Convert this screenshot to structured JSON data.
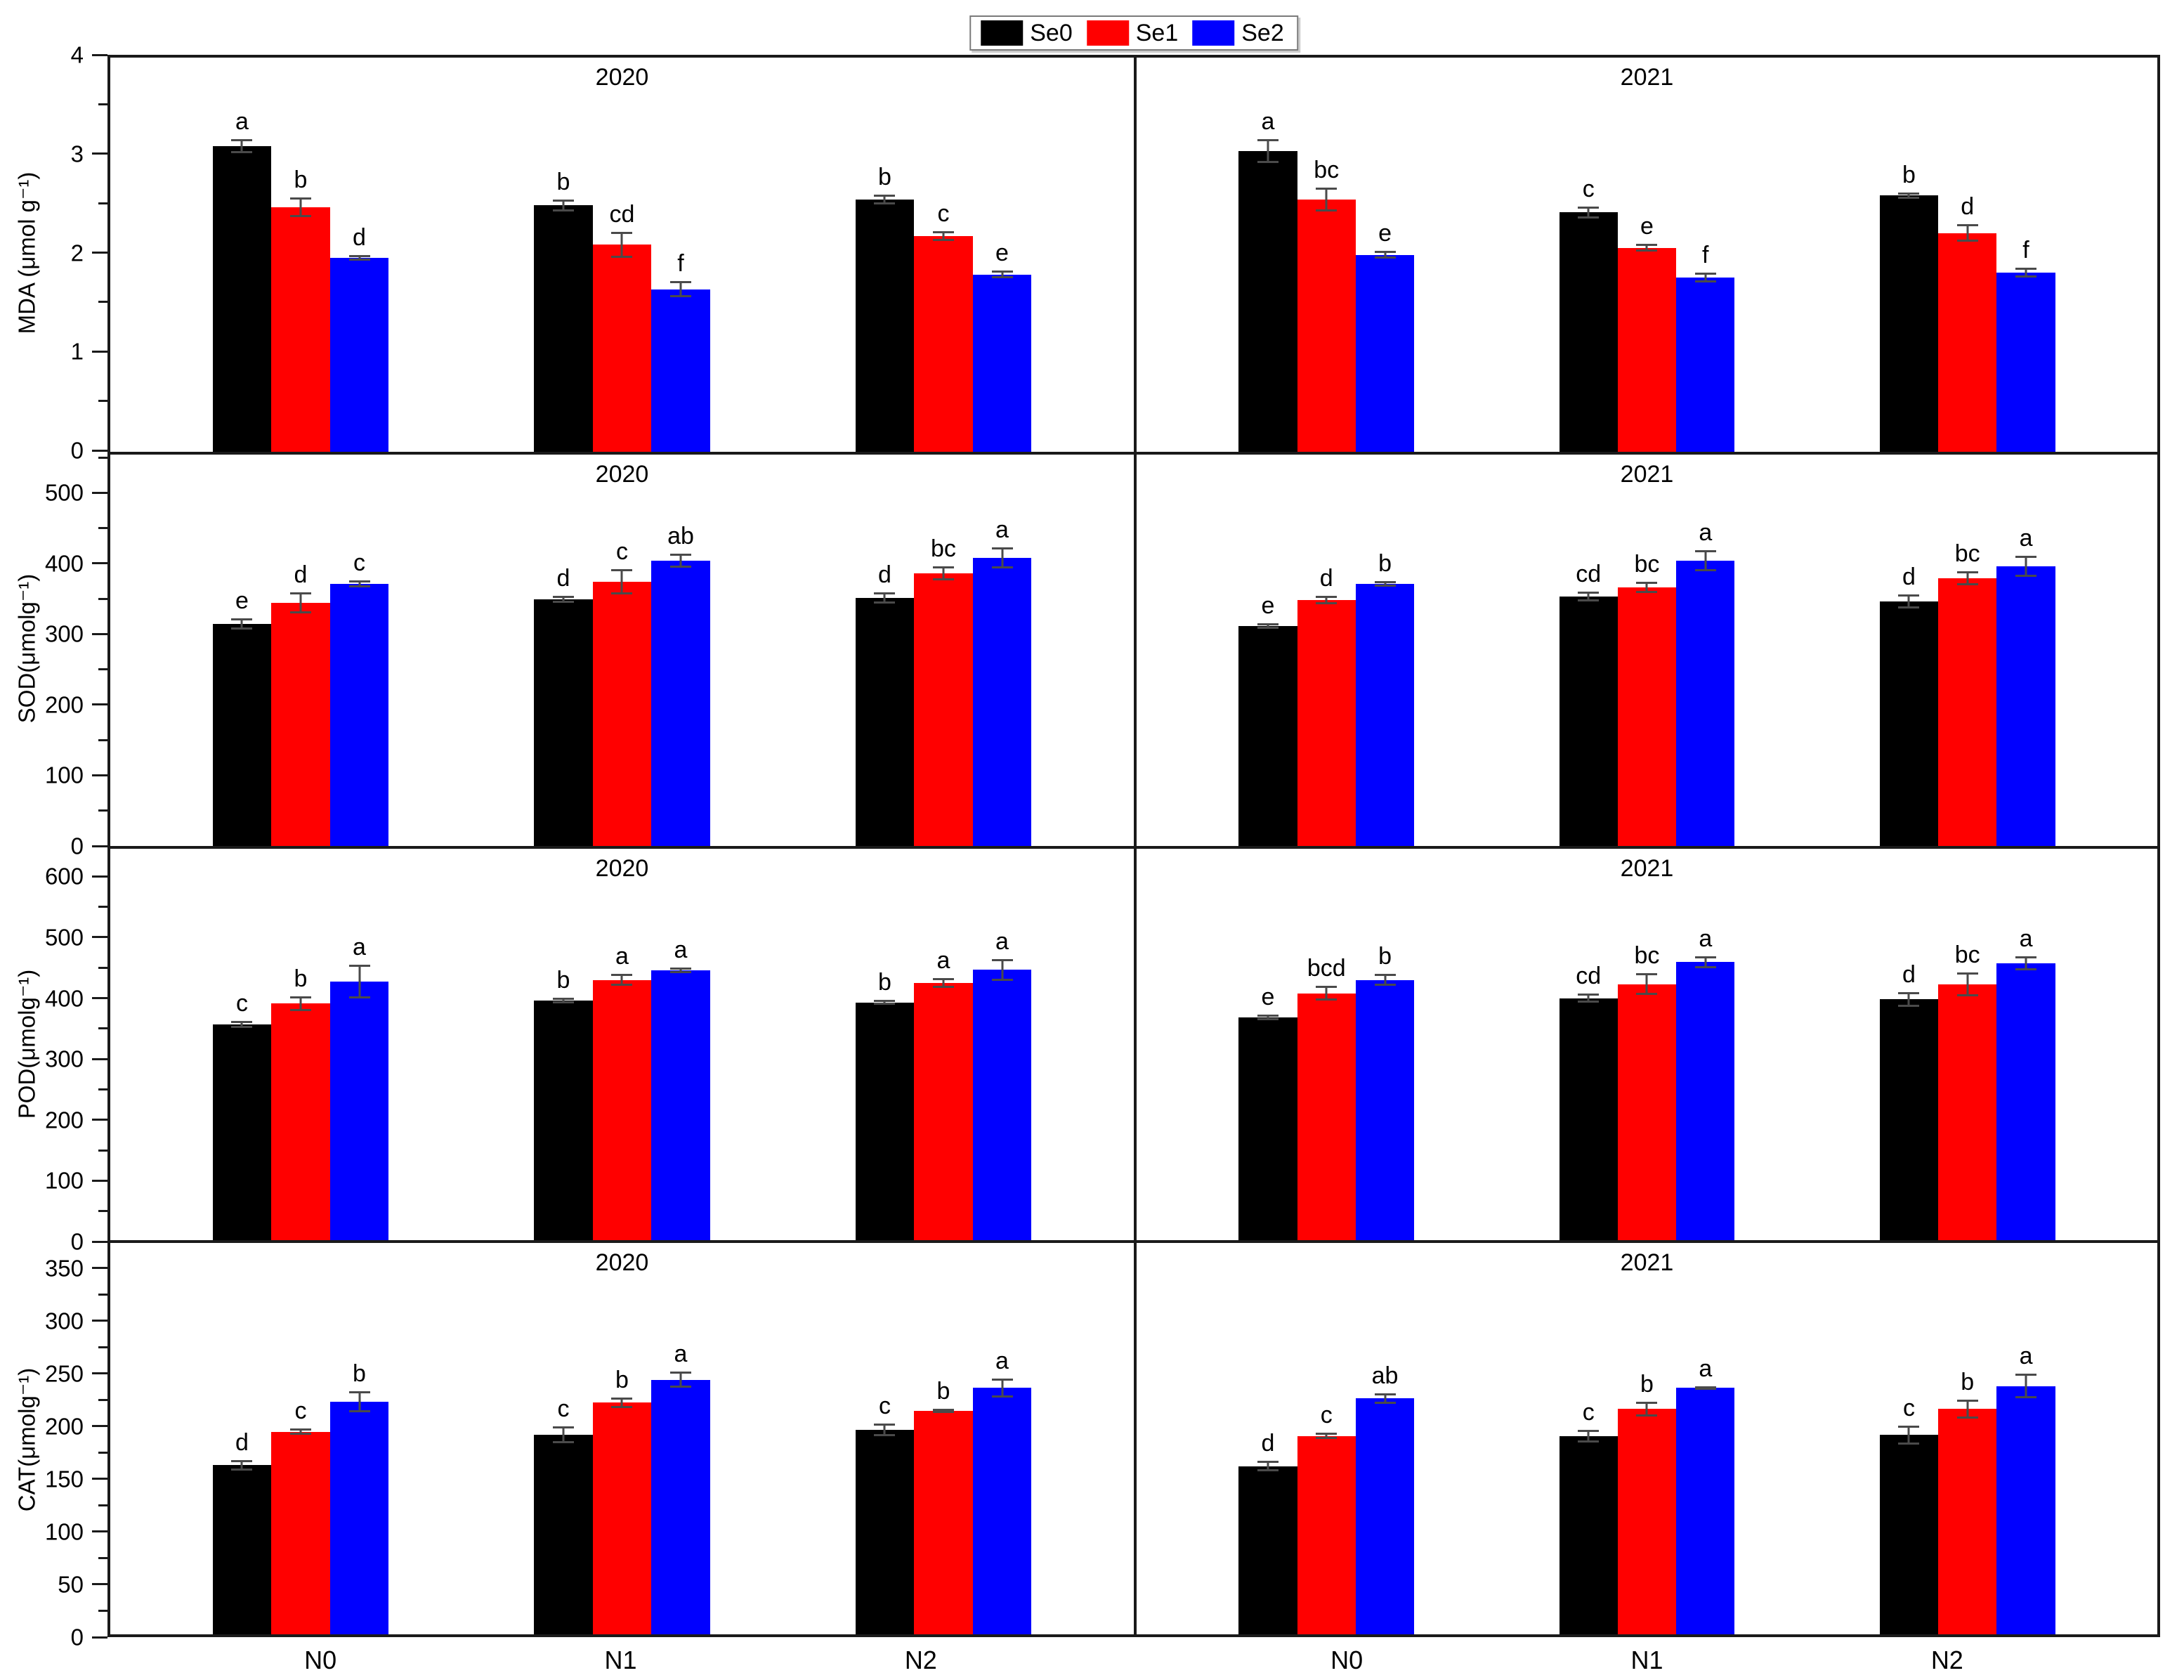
{
  "legend": {
    "items": [
      {
        "label": "Se0",
        "color": "#000000"
      },
      {
        "label": "Se1",
        "color": "#ff0000"
      },
      {
        "label": "Se2",
        "color": "#0000ff"
      }
    ],
    "position": "top-center"
  },
  "x_categories": [
    "N0",
    "N1",
    "N2"
  ],
  "chart_data": {
    "type": "bar",
    "grid": false,
    "layout": "4 rows (MDA, SOD, POD, CAT) x 2 columns (2020, 2021), grouped bars with error bars and significance letters",
    "series_names": [
      "Se0",
      "Se1",
      "Se2"
    ],
    "rows": [
      {
        "measure": "MDA",
        "ylabel": "MDA (μmol g⁻¹)",
        "ylim": [
          0,
          4
        ],
        "yticks": [
          0,
          1,
          2,
          3,
          4
        ],
        "tick_step": 1,
        "minor_step": 0.5,
        "render_max": 4,
        "panels": [
          {
            "year": "2020",
            "groups": [
              {
                "category": "N0",
                "bars": [
                  {
                    "series": "Se0",
                    "value": 3.1,
                    "err": 0.07,
                    "letter": "a"
                  },
                  {
                    "series": "Se1",
                    "value": 2.48,
                    "err": 0.1,
                    "letter": "b"
                  },
                  {
                    "series": "Se2",
                    "value": 1.97,
                    "err": 0.03,
                    "letter": "d"
                  }
                ]
              },
              {
                "category": "N1",
                "bars": [
                  {
                    "series": "Se0",
                    "value": 2.5,
                    "err": 0.06,
                    "letter": "b"
                  },
                  {
                    "series": "Se1",
                    "value": 2.1,
                    "err": 0.13,
                    "letter": "cd"
                  },
                  {
                    "series": "Se2",
                    "value": 1.65,
                    "err": 0.08,
                    "letter": "f"
                  }
                ]
              },
              {
                "category": "N2",
                "bars": [
                  {
                    "series": "Se0",
                    "value": 2.56,
                    "err": 0.05,
                    "letter": "b"
                  },
                  {
                    "series": "Se1",
                    "value": 2.19,
                    "err": 0.05,
                    "letter": "c"
                  },
                  {
                    "series": "Se2",
                    "value": 1.8,
                    "err": 0.04,
                    "letter": "e"
                  }
                ]
              }
            ]
          },
          {
            "year": "2021",
            "groups": [
              {
                "category": "N0",
                "bars": [
                  {
                    "series": "Se0",
                    "value": 3.05,
                    "err": 0.12,
                    "letter": "a"
                  },
                  {
                    "series": "Se1",
                    "value": 2.56,
                    "err": 0.12,
                    "letter": "bc"
                  },
                  {
                    "series": "Se2",
                    "value": 2.0,
                    "err": 0.04,
                    "letter": "e"
                  }
                ]
              },
              {
                "category": "N1",
                "bars": [
                  {
                    "series": "Se0",
                    "value": 2.43,
                    "err": 0.06,
                    "letter": "c"
                  },
                  {
                    "series": "Se1",
                    "value": 2.07,
                    "err": 0.04,
                    "letter": "e"
                  },
                  {
                    "series": "Se2",
                    "value": 1.77,
                    "err": 0.05,
                    "letter": "f"
                  }
                ]
              },
              {
                "category": "N2",
                "bars": [
                  {
                    "series": "Se0",
                    "value": 2.6,
                    "err": 0.03,
                    "letter": "b"
                  },
                  {
                    "series": "Se1",
                    "value": 2.22,
                    "err": 0.09,
                    "letter": "d"
                  },
                  {
                    "series": "Se2",
                    "value": 1.82,
                    "err": 0.05,
                    "letter": "f"
                  }
                ]
              }
            ]
          }
        ]
      },
      {
        "measure": "SOD",
        "ylabel": "SOD(μmolg⁻¹)",
        "ylim": [
          0,
          500
        ],
        "yticks": [
          0,
          100,
          200,
          300,
          400,
          500
        ],
        "tick_step": 100,
        "minor_step": 50,
        "render_max": 560,
        "panels": [
          {
            "year": "2020",
            "groups": [
              {
                "category": "N0",
                "bars": [
                  {
                    "series": "Se0",
                    "value": 318,
                    "err": 8,
                    "letter": "e"
                  },
                  {
                    "series": "Se1",
                    "value": 348,
                    "err": 15,
                    "letter": "d"
                  },
                  {
                    "series": "Se2",
                    "value": 375,
                    "err": 5,
                    "letter": "c"
                  }
                ]
              },
              {
                "category": "N1",
                "bars": [
                  {
                    "series": "Se0",
                    "value": 353,
                    "err": 5,
                    "letter": "d"
                  },
                  {
                    "series": "Se1",
                    "value": 378,
                    "err": 18,
                    "letter": "c"
                  },
                  {
                    "series": "Se2",
                    "value": 408,
                    "err": 10,
                    "letter": "ab"
                  }
                ]
              },
              {
                "category": "N2",
                "bars": [
                  {
                    "series": "Se0",
                    "value": 355,
                    "err": 8,
                    "letter": "d"
                  },
                  {
                    "series": "Se1",
                    "value": 390,
                    "err": 10,
                    "letter": "bc"
                  },
                  {
                    "series": "Se2",
                    "value": 412,
                    "err": 15,
                    "letter": "a"
                  }
                ]
              }
            ]
          },
          {
            "year": "2021",
            "groups": [
              {
                "category": "N0",
                "bars": [
                  {
                    "series": "Se0",
                    "value": 315,
                    "err": 4,
                    "letter": "e"
                  },
                  {
                    "series": "Se1",
                    "value": 352,
                    "err": 6,
                    "letter": "d"
                  },
                  {
                    "series": "Se2",
                    "value": 375,
                    "err": 4,
                    "letter": "b"
                  }
                ]
              },
              {
                "category": "N1",
                "bars": [
                  {
                    "series": "Se0",
                    "value": 357,
                    "err": 7,
                    "letter": "cd"
                  },
                  {
                    "series": "Se1",
                    "value": 370,
                    "err": 8,
                    "letter": "bc"
                  },
                  {
                    "series": "Se2",
                    "value": 408,
                    "err": 15,
                    "letter": "a"
                  }
                ]
              },
              {
                "category": "N2",
                "bars": [
                  {
                    "series": "Se0",
                    "value": 350,
                    "err": 10,
                    "letter": "d"
                  },
                  {
                    "series": "Se1",
                    "value": 383,
                    "err": 10,
                    "letter": "bc"
                  },
                  {
                    "series": "Se2",
                    "value": 400,
                    "err": 15,
                    "letter": "a"
                  }
                ]
              }
            ]
          }
        ]
      },
      {
        "measure": "POD",
        "ylabel": "POD(μmolg⁻¹)",
        "ylim": [
          0,
          600
        ],
        "yticks": [
          0,
          100,
          200,
          300,
          400,
          500,
          600
        ],
        "tick_step": 100,
        "minor_step": 50,
        "render_max": 650,
        "panels": [
          {
            "year": "2020",
            "groups": [
              {
                "category": "N0",
                "bars": [
                  {
                    "series": "Se0",
                    "value": 358,
                    "err": 6,
                    "letter": "c"
                  },
                  {
                    "series": "Se1",
                    "value": 393,
                    "err": 12,
                    "letter": "b"
                  },
                  {
                    "series": "Se2",
                    "value": 430,
                    "err": 28,
                    "letter": "a"
                  }
                ]
              },
              {
                "category": "N1",
                "bars": [
                  {
                    "series": "Se0",
                    "value": 398,
                    "err": 5,
                    "letter": "b"
                  },
                  {
                    "series": "Se1",
                    "value": 432,
                    "err": 10,
                    "letter": "a"
                  },
                  {
                    "series": "Se2",
                    "value": 448,
                    "err": 5,
                    "letter": "a"
                  }
                ]
              },
              {
                "category": "N2",
                "bars": [
                  {
                    "series": "Se0",
                    "value": 395,
                    "err": 4,
                    "letter": "b"
                  },
                  {
                    "series": "Se1",
                    "value": 427,
                    "err": 8,
                    "letter": "a"
                  },
                  {
                    "series": "Se2",
                    "value": 449,
                    "err": 18,
                    "letter": "a"
                  }
                ]
              }
            ]
          },
          {
            "year": "2021",
            "groups": [
              {
                "category": "N0",
                "bars": [
                  {
                    "series": "Se0",
                    "value": 370,
                    "err": 5,
                    "letter": "e"
                  },
                  {
                    "series": "Se1",
                    "value": 410,
                    "err": 12,
                    "letter": "bcd"
                  },
                  {
                    "series": "Se2",
                    "value": 432,
                    "err": 10,
                    "letter": "b"
                  }
                ]
              },
              {
                "category": "N1",
                "bars": [
                  {
                    "series": "Se0",
                    "value": 402,
                    "err": 8,
                    "letter": "cd"
                  },
                  {
                    "series": "Se1",
                    "value": 425,
                    "err": 18,
                    "letter": "bc"
                  },
                  {
                    "series": "Se2",
                    "value": 462,
                    "err": 10,
                    "letter": "a"
                  }
                ]
              },
              {
                "category": "N2",
                "bars": [
                  {
                    "series": "Se0",
                    "value": 400,
                    "err": 12,
                    "letter": "d"
                  },
                  {
                    "series": "Se1",
                    "value": 425,
                    "err": 20,
                    "letter": "bc"
                  },
                  {
                    "series": "Se2",
                    "value": 460,
                    "err": 12,
                    "letter": "a"
                  }
                ]
              }
            ]
          }
        ]
      },
      {
        "measure": "CAT",
        "ylabel": "CAT(μmolg⁻¹)",
        "ylim": [
          0,
          350
        ],
        "yticks": [
          0,
          50,
          100,
          150,
          200,
          250,
          300,
          350
        ],
        "tick_step": 50,
        "minor_step": 25,
        "render_max": 375,
        "panels": [
          {
            "year": "2020",
            "groups": [
              {
                "category": "N0",
                "bars": [
                  {
                    "series": "Se0",
                    "value": 162,
                    "err": 5,
                    "letter": "d"
                  },
                  {
                    "series": "Se1",
                    "value": 194,
                    "err": 3,
                    "letter": "c"
                  },
                  {
                    "series": "Se2",
                    "value": 223,
                    "err": 10,
                    "letter": "b"
                  }
                ]
              },
              {
                "category": "N1",
                "bars": [
                  {
                    "series": "Se0",
                    "value": 191,
                    "err": 8,
                    "letter": "c"
                  },
                  {
                    "series": "Se1",
                    "value": 222,
                    "err": 5,
                    "letter": "b"
                  },
                  {
                    "series": "Se2",
                    "value": 244,
                    "err": 8,
                    "letter": "a"
                  }
                ]
              },
              {
                "category": "N2",
                "bars": [
                  {
                    "series": "Se0",
                    "value": 196,
                    "err": 6,
                    "letter": "c"
                  },
                  {
                    "series": "Se1",
                    "value": 214,
                    "err": 2,
                    "letter": "b"
                  },
                  {
                    "series": "Se2",
                    "value": 236,
                    "err": 9,
                    "letter": "a"
                  }
                ]
              }
            ]
          },
          {
            "year": "2021",
            "groups": [
              {
                "category": "N0",
                "bars": [
                  {
                    "series": "Se0",
                    "value": 161,
                    "err": 5,
                    "letter": "d"
                  },
                  {
                    "series": "Se1",
                    "value": 190,
                    "err": 3,
                    "letter": "c"
                  },
                  {
                    "series": "Se2",
                    "value": 226,
                    "err": 5,
                    "letter": "ab"
                  }
                ]
              },
              {
                "category": "N1",
                "bars": [
                  {
                    "series": "Se0",
                    "value": 190,
                    "err": 6,
                    "letter": "c"
                  },
                  {
                    "series": "Se1",
                    "value": 216,
                    "err": 7,
                    "letter": "b"
                  },
                  {
                    "series": "Se2",
                    "value": 236,
                    "err": 2,
                    "letter": "a"
                  }
                ]
              },
              {
                "category": "N2",
                "bars": [
                  {
                    "series": "Se0",
                    "value": 191,
                    "err": 9,
                    "letter": "c"
                  },
                  {
                    "series": "Se1",
                    "value": 216,
                    "err": 9,
                    "letter": "b"
                  },
                  {
                    "series": "Se2",
                    "value": 238,
                    "err": 12,
                    "letter": "a"
                  }
                ]
              }
            ]
          }
        ]
      }
    ]
  }
}
